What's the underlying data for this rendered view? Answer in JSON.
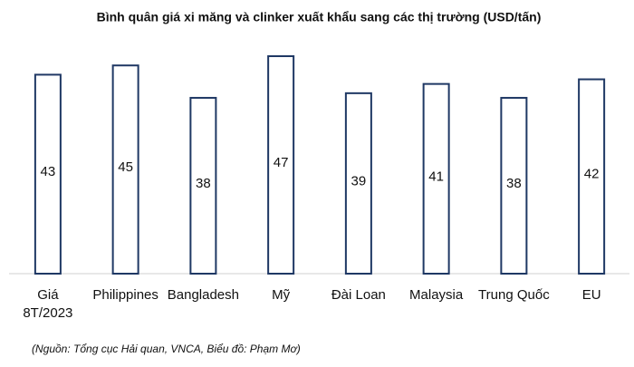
{
  "chart_data": {
    "type": "bar",
    "title": "Bình quân giá xi măng và clinker xuất khẩu sang các thị trường (USD/tấn)",
    "categories": [
      "Giá\n8T/2023",
      "Philippines",
      "Bangladesh",
      "Mỹ",
      "Đài Loan",
      "Malaysia",
      "Trung Quốc",
      "EU"
    ],
    "values": [
      43,
      45,
      38,
      47,
      39,
      41,
      38,
      42
    ],
    "color": "#1f3864",
    "source": "(Nguồn: Tổng cục Hải quan, VNCA, Biểu đồ: Phạm Mơ)"
  }
}
